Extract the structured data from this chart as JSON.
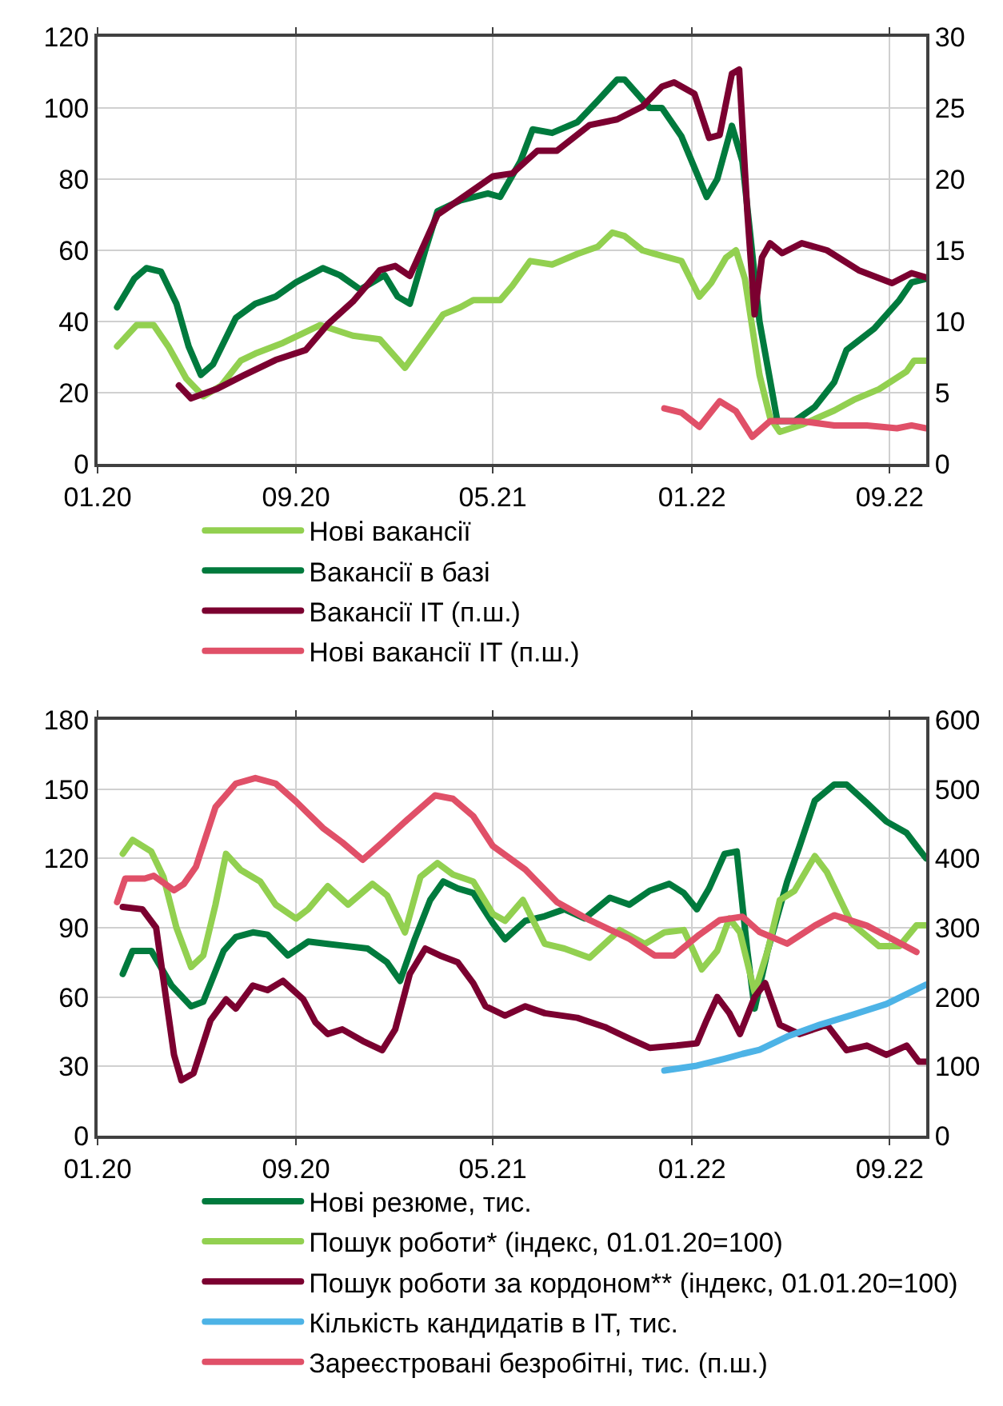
{
  "chart_data": [
    {
      "type": "line",
      "legend": "bottom",
      "grid": true,
      "xlim": [
        "2020-01-01",
        "2022-10-16"
      ],
      "xticks": [
        {
          "value": "2020-01-01",
          "label": "01.20"
        },
        {
          "value": "2020-09-01",
          "label": "09.20"
        },
        {
          "value": "2021-05-01",
          "label": "05.21"
        },
        {
          "value": "2022-01-01",
          "label": "01.22"
        },
        {
          "value": "2022-09-01",
          "label": "09.22"
        }
      ],
      "ylim": [
        0,
        120
      ],
      "yticks": [
        0,
        20,
        40,
        60,
        80,
        100,
        120
      ],
      "y2lim": [
        0,
        30
      ],
      "y2ticks": [
        0,
        5,
        10,
        15,
        20,
        25,
        30
      ],
      "series": [
        {
          "name": "Нові вакансії",
          "color": "#92d050",
          "x": [
            "2020-01-25",
            "2020-02-18",
            "2020-03-10",
            "2020-03-28",
            "2020-04-19",
            "2020-05-10",
            "2020-06-01",
            "2020-06-25",
            "2020-07-13",
            "2020-08-16",
            "2020-10-01",
            "2020-11-10",
            "2020-12-13",
            "2021-01-13",
            "2021-02-07",
            "2021-03-01",
            "2021-03-22",
            "2021-04-07",
            "2021-05-10",
            "2021-05-25",
            "2021-06-16",
            "2021-07-13",
            "2021-08-13",
            "2021-09-07",
            "2021-09-25",
            "2021-10-10",
            "2021-11-01",
            "2021-11-16",
            "2021-12-19",
            "2022-01-10",
            "2022-01-25",
            "2022-02-12",
            "2022-02-24",
            "2022-03-07",
            "2022-03-25",
            "2022-04-07",
            "2022-04-19",
            "2022-05-16",
            "2022-06-25",
            "2022-07-19",
            "2022-08-19",
            "2022-09-22",
            "2022-10-01",
            "2022-10-16"
          ],
          "values": [
            33,
            39,
            39,
            33,
            24,
            19,
            22,
            29,
            31,
            34,
            39,
            36,
            35,
            27,
            35,
            42,
            44,
            46,
            46,
            50,
            57,
            56,
            59,
            61,
            65,
            64,
            60,
            59,
            57,
            47,
            51,
            58,
            60,
            52,
            25,
            13,
            9,
            11,
            15,
            18,
            21,
            26,
            29,
            29
          ]
        },
        {
          "name": "Вакансії в базі",
          "color": "#007a3d",
          "x": [
            "2020-01-25",
            "2020-02-15",
            "2020-03-01",
            "2020-03-19",
            "2020-04-07",
            "2020-04-22",
            "2020-05-07",
            "2020-05-22",
            "2020-06-19",
            "2020-07-13",
            "2020-08-07",
            "2020-09-01",
            "2020-10-04",
            "2020-10-25",
            "2020-11-19",
            "2020-12-19",
            "2021-01-04",
            "2021-01-19",
            "2021-02-07",
            "2021-02-22",
            "2021-03-22",
            "2021-04-25",
            "2021-05-10",
            "2021-06-04",
            "2021-06-19",
            "2021-07-13",
            "2021-08-13",
            "2021-09-07",
            "2021-10-01",
            "2021-10-10",
            "2021-11-10",
            "2021-11-25",
            "2021-12-19",
            "2022-01-19",
            "2022-02-01",
            "2022-02-19",
            "2022-03-04",
            "2022-03-25",
            "2022-04-16",
            "2022-05-07",
            "2022-06-01",
            "2022-06-25",
            "2022-07-10",
            "2022-08-13",
            "2022-09-13",
            "2022-09-28",
            "2022-10-16"
          ],
          "values": [
            44,
            52,
            55,
            54,
            45,
            33,
            25,
            28,
            41,
            45,
            47,
            51,
            55,
            53,
            49,
            53,
            47,
            45,
            60,
            71,
            74,
            76,
            75,
            85,
            94,
            93,
            96,
            102,
            108,
            108,
            100,
            100,
            92,
            75,
            80,
            95,
            85,
            40,
            12,
            12,
            16,
            23,
            32,
            38,
            46,
            51,
            52
          ]
        },
        {
          "name": "Вакансії IT (п.ш.)",
          "color": "#7b0030",
          "axis": "y2",
          "x": [
            "2020-04-10",
            "2020-04-25",
            "2020-05-28",
            "2020-06-28",
            "2020-08-07",
            "2020-09-13",
            "2020-10-10",
            "2020-11-10",
            "2020-12-13",
            "2021-01-01",
            "2021-01-19",
            "2021-02-22",
            "2021-03-22",
            "2021-05-01",
            "2021-05-25",
            "2021-06-25",
            "2021-07-19",
            "2021-08-28",
            "2021-10-01",
            "2021-11-01",
            "2021-11-25",
            "2021-12-10",
            "2022-01-04",
            "2022-01-22",
            "2022-02-04",
            "2022-02-19",
            "2022-02-28",
            "2022-03-10",
            "2022-03-19",
            "2022-03-28",
            "2022-04-07",
            "2022-04-22",
            "2022-05-16",
            "2022-06-16",
            "2022-07-25",
            "2022-09-04",
            "2022-09-28",
            "2022-10-16"
          ],
          "values": [
            5.5,
            4.6,
            5.3,
            6.2,
            7.3,
            8.0,
            9.8,
            11.4,
            13.6,
            13.9,
            13.2,
            17.5,
            18.6,
            20.2,
            20.4,
            22.0,
            22.0,
            23.8,
            24.2,
            25.1,
            26.5,
            26.8,
            26.0,
            22.9,
            23.1,
            27.4,
            27.7,
            17.7,
            10.5,
            14.5,
            15.5,
            14.8,
            15.5,
            15.0,
            13.6,
            12.7,
            13.4,
            13.1
          ]
        },
        {
          "name": "Нові вакансії IT (п.ш.)",
          "color": "#e05068",
          "axis": "y2",
          "x": [
            "2021-11-28",
            "2021-12-19",
            "2022-01-10",
            "2022-02-04",
            "2022-02-24",
            "2022-03-16",
            "2022-04-07",
            "2022-05-16",
            "2022-06-25",
            "2022-08-04",
            "2022-09-10",
            "2022-09-28",
            "2022-10-16"
          ],
          "values": [
            3.9,
            3.6,
            2.6,
            4.4,
            3.7,
            1.9,
            3.0,
            3.0,
            2.7,
            2.7,
            2.5,
            2.7,
            2.5
          ]
        }
      ]
    },
    {
      "type": "line",
      "legend": "bottom",
      "grid": true,
      "xlim": [
        "2020-01-01",
        "2022-10-16"
      ],
      "xticks": [
        {
          "value": "2020-01-01",
          "label": "01.20"
        },
        {
          "value": "2020-09-01",
          "label": "09.20"
        },
        {
          "value": "2021-05-01",
          "label": "05.21"
        },
        {
          "value": "2022-01-01",
          "label": "01.22"
        },
        {
          "value": "2022-09-01",
          "label": "09.22"
        }
      ],
      "ylim": [
        0,
        180
      ],
      "yticks": [
        0,
        30,
        60,
        90,
        120,
        150,
        180
      ],
      "y2lim": [
        0,
        600
      ],
      "y2ticks": [
        0,
        100,
        200,
        300,
        400,
        500,
        600
      ],
      "series": [
        {
          "name": "Нові резюме, тис.",
          "color": "#007a3d",
          "x": [
            "2020-02-01",
            "2020-02-13",
            "2020-03-07",
            "2020-04-01",
            "2020-04-25",
            "2020-05-10",
            "2020-06-04",
            "2020-06-19",
            "2020-07-10",
            "2020-07-28",
            "2020-08-22",
            "2020-09-16",
            "2020-10-10",
            "2020-11-04",
            "2020-11-28",
            "2020-12-22",
            "2021-01-07",
            "2021-01-25",
            "2021-02-13",
            "2021-03-01",
            "2021-03-19",
            "2021-04-07",
            "2021-05-01",
            "2021-05-16",
            "2021-06-10",
            "2021-07-04",
            "2021-07-28",
            "2021-08-22",
            "2021-09-22",
            "2021-10-16",
            "2021-11-10",
            "2021-12-04",
            "2021-12-22",
            "2022-01-07",
            "2022-01-22",
            "2022-02-10",
            "2022-02-25",
            "2022-03-10",
            "2022-03-19",
            "2022-04-04",
            "2022-04-28",
            "2022-05-13",
            "2022-06-01",
            "2022-06-25",
            "2022-07-10",
            "2022-08-04",
            "2022-08-28",
            "2022-09-22",
            "2022-10-07",
            "2022-10-16"
          ],
          "values": [
            70,
            80,
            80,
            65,
            56,
            58,
            80,
            86,
            88,
            87,
            78,
            84,
            83,
            82,
            81,
            75,
            67,
            85,
            102,
            110,
            107,
            105,
            92,
            85,
            93,
            95,
            98,
            94,
            103,
            100,
            106,
            109,
            105,
            98,
            107,
            122,
            123,
            80,
            55,
            80,
            110,
            125,
            145,
            152,
            152,
            144,
            136,
            131,
            124,
            120
          ]
        },
        {
          "name": "Пошук роботи* (індекс, 01.01.20=100)",
          "color": "#92d050",
          "x": [
            "2020-02-01",
            "2020-02-13",
            "2020-03-07",
            "2020-03-22",
            "2020-04-07",
            "2020-04-25",
            "2020-05-10",
            "2020-05-25",
            "2020-06-07",
            "2020-06-25",
            "2020-07-19",
            "2020-08-07",
            "2020-09-01",
            "2020-09-16",
            "2020-10-10",
            "2020-11-04",
            "2020-12-04",
            "2020-12-22",
            "2021-01-13",
            "2021-02-01",
            "2021-02-22",
            "2021-03-13",
            "2021-04-07",
            "2021-05-01",
            "2021-05-16",
            "2021-06-07",
            "2021-07-04",
            "2021-07-28",
            "2021-08-28",
            "2021-10-04",
            "2021-11-04",
            "2021-11-28",
            "2021-12-22",
            "2022-01-13",
            "2022-02-01",
            "2022-02-16",
            "2022-03-01",
            "2022-03-19",
            "2022-04-04",
            "2022-04-19",
            "2022-05-07",
            "2022-06-01",
            "2022-06-16",
            "2022-07-16",
            "2022-08-19",
            "2022-09-13",
            "2022-10-04",
            "2022-10-16"
          ],
          "values": [
            122,
            128,
            123,
            112,
            90,
            73,
            78,
            100,
            122,
            115,
            110,
            100,
            94,
            98,
            108,
            100,
            109,
            104,
            88,
            112,
            118,
            113,
            110,
            96,
            93,
            102,
            83,
            81,
            77,
            89,
            83,
            88,
            89,
            72,
            80,
            94,
            88,
            62,
            80,
            102,
            106,
            121,
            114,
            92,
            82,
            82,
            91,
            91
          ]
        },
        {
          "name": "Пошук роботи за кордоном** (індекс, 01.01.20=100)",
          "color": "#7b0030",
          "x": [
            "2020-02-01",
            "2020-02-25",
            "2020-03-13",
            "2020-04-04",
            "2020-04-13",
            "2020-04-28",
            "2020-05-19",
            "2020-06-07",
            "2020-06-19",
            "2020-07-10",
            "2020-07-28",
            "2020-08-16",
            "2020-09-10",
            "2020-09-25",
            "2020-10-10",
            "2020-10-28",
            "2020-11-22",
            "2020-12-16",
            "2021-01-01",
            "2021-01-19",
            "2021-02-07",
            "2021-02-25",
            "2021-03-19",
            "2021-04-07",
            "2021-04-22",
            "2021-05-16",
            "2021-06-10",
            "2021-07-04",
            "2021-08-13",
            "2021-09-16",
            "2021-10-16",
            "2021-11-10",
            "2021-12-13",
            "2022-01-07",
            "2022-01-19",
            "2022-02-01",
            "2022-02-16",
            "2022-03-01",
            "2022-03-19",
            "2022-04-01",
            "2022-04-19",
            "2022-05-13",
            "2022-06-16",
            "2022-07-10",
            "2022-08-04",
            "2022-08-28",
            "2022-09-22",
            "2022-10-07",
            "2022-10-16"
          ],
          "values": [
            99,
            98,
            90,
            35,
            24,
            27,
            50,
            59,
            55,
            65,
            63,
            67,
            59,
            49,
            44,
            46,
            41,
            37,
            46,
            70,
            81,
            78,
            75,
            66,
            56,
            52,
            56,
            53,
            51,
            47,
            42,
            38,
            39,
            40,
            50,
            60,
            53,
            44,
            60,
            66,
            48,
            44,
            48,
            37,
            39,
            35,
            39,
            32,
            32
          ]
        },
        {
          "name": "Кількість кандидатів в IT, тис.",
          "color": "#4db3e6",
          "axis": "y2",
          "x": [
            "2021-11-28",
            "2022-01-07",
            "2022-02-10",
            "2022-03-04",
            "2022-03-25",
            "2022-04-28",
            "2022-06-07",
            "2022-07-19",
            "2022-08-28",
            "2022-10-16"
          ],
          "values": [
            94,
            101,
            111,
            118,
            124,
            143,
            160,
            175,
            190,
            218
          ]
        },
        {
          "name": "Зареєстровані безробітні, тис. (п.ш.)",
          "color": "#e05068",
          "axis": "y2",
          "x": [
            "2020-01-25",
            "2020-02-04",
            "2020-02-28",
            "2020-03-10",
            "2020-04-04",
            "2020-04-16",
            "2020-05-01",
            "2020-05-25",
            "2020-06-19",
            "2020-07-13",
            "2020-08-07",
            "2020-09-01",
            "2020-10-04",
            "2020-10-28",
            "2020-11-22",
            "2020-12-16",
            "2021-01-16",
            "2021-02-19",
            "2021-03-13",
            "2021-04-07",
            "2021-05-01",
            "2021-06-10",
            "2021-07-19",
            "2021-08-28",
            "2021-10-16",
            "2021-11-16",
            "2021-12-10",
            "2022-01-10",
            "2022-02-04",
            "2022-03-04",
            "2022-03-25",
            "2022-04-28",
            "2022-06-01",
            "2022-06-25",
            "2022-08-04",
            "2022-10-04"
          ],
          "values": [
            337,
            371,
            371,
            375,
            354,
            363,
            388,
            474,
            508,
            516,
            508,
            482,
            444,
            423,
            398,
            423,
            456,
            491,
            486,
            461,
            418,
            384,
            337,
            311,
            284,
            260,
            260,
            290,
            311,
            316,
            294,
            277,
            303,
            318,
            303,
            265
          ]
        }
      ]
    }
  ]
}
